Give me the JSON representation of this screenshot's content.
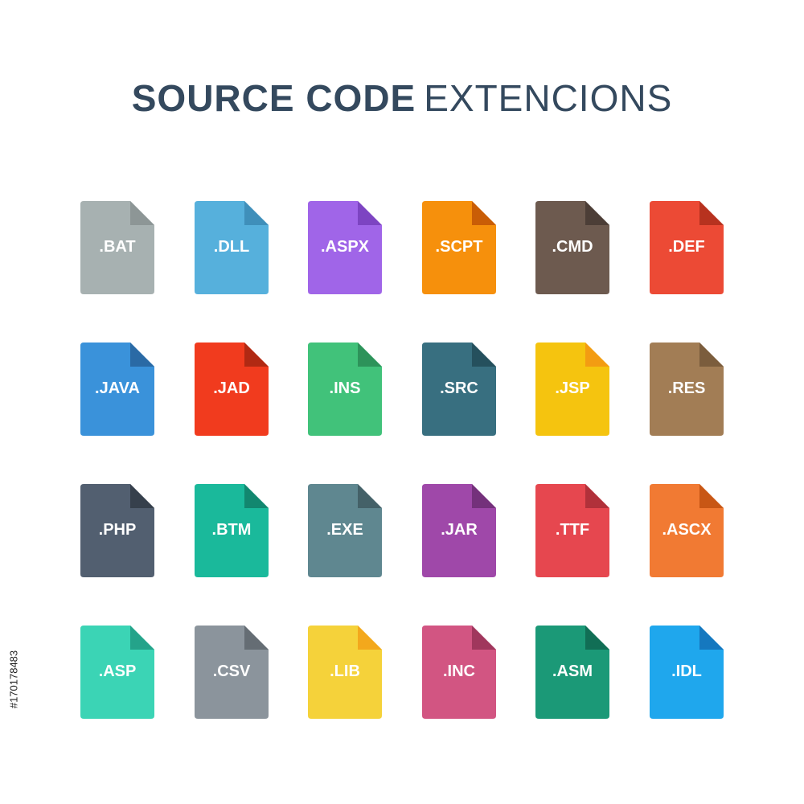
{
  "header": {
    "title_bold": "SOURCE CODE",
    "title_light": "EXTENCIONS",
    "color": "#34495e"
  },
  "files": [
    {
      "label": ".BAT",
      "color": "#a7b1b1",
      "fold": "#8d9696",
      "icon": "file-icon"
    },
    {
      "label": ".DLL",
      "color": "#56b0dc",
      "fold": "#3f8fba",
      "icon": "file-icon"
    },
    {
      "label": ".ASPX",
      "color": "#a065e8",
      "fold": "#7d44c2",
      "icon": "file-icon"
    },
    {
      "label": ".SCPT",
      "color": "#f6900c",
      "fold": "#c95d06",
      "icon": "file-icon"
    },
    {
      "label": ".CMD",
      "color": "#6d5a4f",
      "fold": "#4c3e37",
      "icon": "file-icon"
    },
    {
      "label": ".DEF",
      "color": "#ec4a35",
      "fold": "#b7321f",
      "icon": "file-icon"
    },
    {
      "label": ".JAVA",
      "color": "#3a92da",
      "fold": "#2a6aa5",
      "icon": "file-icon"
    },
    {
      "label": ".JAD",
      "color": "#f13b1e",
      "fold": "#b12913",
      "icon": "file-icon"
    },
    {
      "label": ".INS",
      "color": "#41c27a",
      "fold": "#2d935a",
      "icon": "file-icon"
    },
    {
      "label": ".SRC",
      "color": "#386f80",
      "fold": "#25505d",
      "icon": "file-icon"
    },
    {
      "label": ".JSP",
      "color": "#f5c40f",
      "fold": "#f39c12",
      "icon": "file-icon"
    },
    {
      "label": ".RES",
      "color": "#a27d55",
      "fold": "#7b5d3d",
      "icon": "file-icon"
    },
    {
      "label": ".PHP",
      "color": "#525f70",
      "fold": "#36404c",
      "icon": "file-icon"
    },
    {
      "label": ".BTM",
      "color": "#1ab99b",
      "fold": "#12876f",
      "icon": "file-icon"
    },
    {
      "label": ".EXE",
      "color": "#5f8790",
      "fold": "#446168",
      "icon": "file-icon"
    },
    {
      "label": ".JAR",
      "color": "#9f48a9",
      "fold": "#74317b",
      "icon": "file-icon"
    },
    {
      "label": ".TTF",
      "color": "#e6474f",
      "fold": "#b1313a",
      "icon": "file-icon"
    },
    {
      "label": ".ASCX",
      "color": "#f17a33",
      "fold": "#c85715",
      "icon": "file-icon"
    },
    {
      "label": ".ASP",
      "color": "#3bd4b5",
      "fold": "#24a38a",
      "icon": "file-icon"
    },
    {
      "label": ".CSV",
      "color": "#8b949c",
      "fold": "#656d74",
      "icon": "file-icon"
    },
    {
      "label": ".LIB",
      "color": "#f5d23a",
      "fold": "#f3a81c",
      "icon": "file-icon"
    },
    {
      "label": ".INC",
      "color": "#d25582",
      "fold": "#a0375d",
      "icon": "file-icon"
    },
    {
      "label": ".ASM",
      "color": "#1b9977",
      "fold": "#116e55",
      "icon": "file-icon"
    },
    {
      "label": ".IDL",
      "color": "#1fa7ed",
      "fold": "#1578bf",
      "icon": "file-icon"
    }
  ],
  "stock_id": "#170178483"
}
